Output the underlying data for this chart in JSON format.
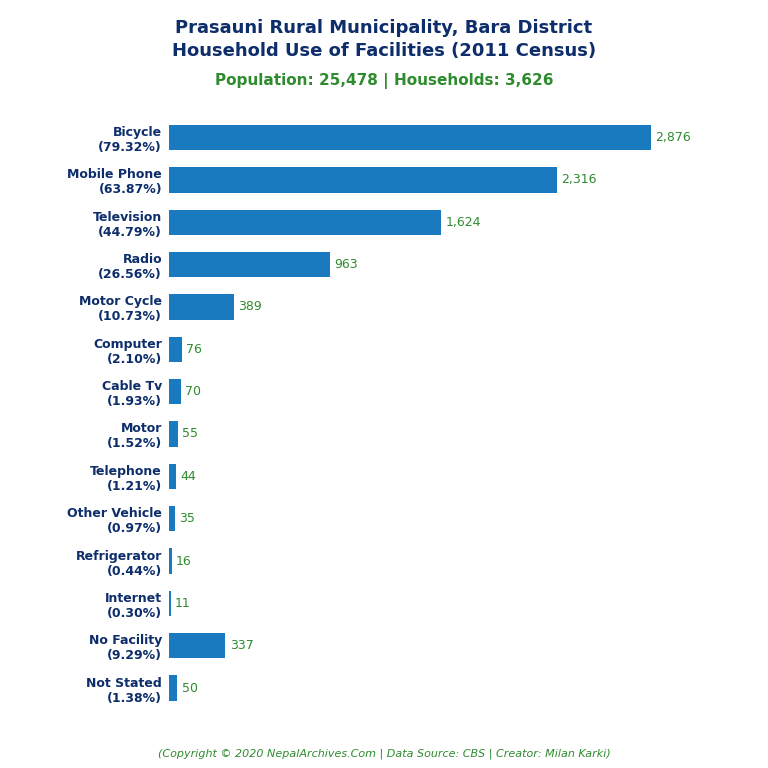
{
  "title_line1": "Prasauni Rural Municipality, Bara District",
  "title_line2": "Household Use of Facilities (2011 Census)",
  "subtitle": "Population: 25,478 | Households: 3,626",
  "footer": "(Copyright © 2020 NepalArchives.Com | Data Source: CBS | Creator: Milan Karki)",
  "categories": [
    "Bicycle\n(79.32%)",
    "Mobile Phone\n(63.87%)",
    "Television\n(44.79%)",
    "Radio\n(26.56%)",
    "Motor Cycle\n(10.73%)",
    "Computer\n(2.10%)",
    "Cable Tv\n(1.93%)",
    "Motor\n(1.52%)",
    "Telephone\n(1.21%)",
    "Other Vehicle\n(0.97%)",
    "Refrigerator\n(0.44%)",
    "Internet\n(0.30%)",
    "No Facility\n(9.29%)",
    "Not Stated\n(1.38%)"
  ],
  "values": [
    2876,
    2316,
    1624,
    963,
    389,
    76,
    70,
    55,
    44,
    35,
    16,
    11,
    337,
    50
  ],
  "bar_color": "#1a7abf",
  "title_color": "#0d2d6b",
  "subtitle_color": "#2e8b2e",
  "value_color": "#2e8b2e",
  "footer_color": "#2e8b2e",
  "background_color": "#ffffff",
  "xlim": [
    0,
    3300
  ],
  "figsize": [
    7.68,
    7.68
  ],
  "dpi": 100
}
